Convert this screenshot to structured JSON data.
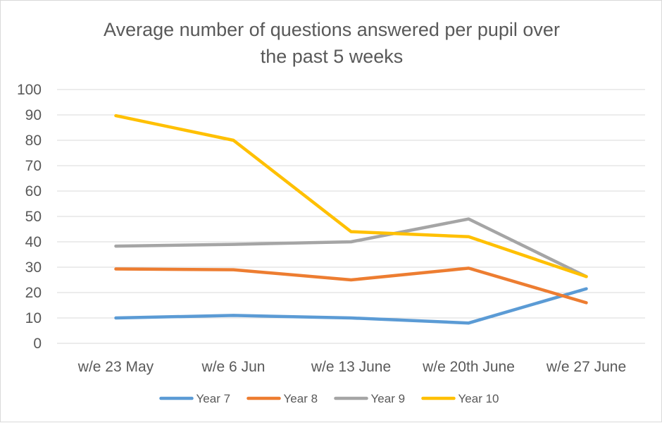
{
  "chart_data": {
    "type": "line",
    "title_lines": [
      "Average number of questions answered per pupil over",
      "the past 5 weeks"
    ],
    "xlabel": "",
    "ylabel": "",
    "categories": [
      "w/e 23 May",
      "w/e 6 Jun",
      "w/e 13 June",
      "w/e 20th June",
      "w/e 27 June"
    ],
    "ylim": [
      0,
      100
    ],
    "yticks": [
      0,
      10,
      20,
      30,
      40,
      50,
      60,
      70,
      80,
      90,
      100
    ],
    "grid": true,
    "legend_position": "bottom",
    "series": [
      {
        "name": "Year 7",
        "color": "#5b9bd5",
        "values": [
          10,
          11,
          10,
          8,
          21.5
        ]
      },
      {
        "name": "Year 8",
        "color": "#ed7d31",
        "values": [
          29.3,
          29,
          25,
          29.6,
          16
        ]
      },
      {
        "name": "Year 9",
        "color": "#a5a5a5",
        "values": [
          38.3,
          39,
          40,
          49,
          26.3
        ]
      },
      {
        "name": "Year 10",
        "color": "#ffc000",
        "values": [
          89.7,
          80,
          44,
          42,
          26.3
        ]
      }
    ]
  }
}
